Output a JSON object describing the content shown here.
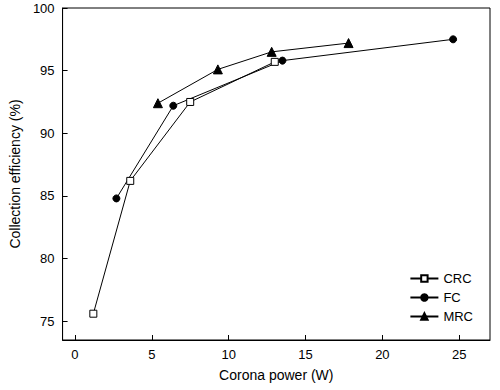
{
  "chart_data": {
    "type": "line",
    "x_label": "Corona power (W)",
    "y_label": "Collection efficiency (%)",
    "xlim": [
      -0.8,
      27
    ],
    "xticks": [
      0,
      5,
      10,
      15,
      20,
      25
    ],
    "ylim": [
      73.5,
      100
    ],
    "yticks": [
      75,
      80,
      85,
      90,
      95,
      100
    ],
    "grid": false,
    "legend": "lower right",
    "series": [
      {
        "name": "CRC",
        "color": "#000000",
        "marker": "square-open",
        "line_style": "solid",
        "x": [
          1.2,
          3.6,
          7.5,
          13.0
        ],
        "values": [
          75.6,
          86.2,
          92.5,
          95.7
        ]
      },
      {
        "name": "FC",
        "color": "#000000",
        "marker": "circle",
        "line_style": "solid",
        "x": [
          2.7,
          6.4,
          13.5,
          24.6
        ],
        "values": [
          84.8,
          92.2,
          95.8,
          97.5
        ]
      },
      {
        "name": "MRC",
        "color": "#000000",
        "marker": "triangle",
        "line_style": "solid",
        "x": [
          5.4,
          9.3,
          12.8,
          17.8
        ],
        "values": [
          92.4,
          95.1,
          96.5,
          97.2
        ]
      }
    ]
  }
}
